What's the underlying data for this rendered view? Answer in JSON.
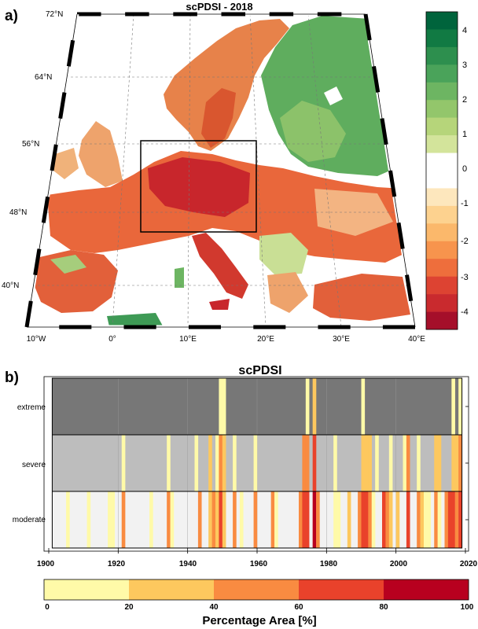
{
  "panel_a": {
    "label": "a)",
    "title": "scPDSI - 2018",
    "lat_labels": [
      "72°N",
      "64°N",
      "56°N",
      "48°N",
      "40°N"
    ],
    "lon_labels": [
      "10°W",
      "0°",
      "10°E",
      "20°E",
      "30°E",
      "40°E"
    ],
    "box_region": {
      "lon": [
        4,
        19
      ],
      "lat": [
        48,
        55.5
      ]
    },
    "colorbar": {
      "ticks": [
        "4",
        "3",
        "2",
        "1",
        "0",
        "-1",
        "-2",
        "-3",
        "-4"
      ],
      "colors": [
        "#00643c",
        "#117a43",
        "#2d8f4e",
        "#4aa35a",
        "#6db562",
        "#93c66b",
        "#b6d57a",
        "#d3e49b",
        "#ffffff",
        "#ffffff",
        "#fde7bd",
        "#fdd28f",
        "#fbb86b",
        "#f7944d",
        "#ee6e3c",
        "#dd4332",
        "#c92a2e",
        "#a50f2a"
      ]
    },
    "colors": {
      "wet": "#4aa35a",
      "dry": "#e0533a",
      "extreme_dry": "#b0142a",
      "ocean": "#ffffff"
    }
  },
  "panel_b": {
    "label": "b)",
    "title": "scPDSI",
    "xlabel": "Percentage Area [%]",
    "x_ticks": [
      "1900",
      "1920",
      "1940",
      "1960",
      "1980",
      "2000",
      "2020"
    ],
    "row_labels": [
      "extreme",
      "severe",
      "moderate"
    ],
    "row_backgrounds": [
      "#777777",
      "#bdbdbd",
      "#f2f2f2"
    ],
    "colorbar_ticks": [
      "0",
      "20",
      "40",
      "60",
      "80",
      "100"
    ],
    "colorbar_colors": [
      "#fffaa8",
      "#fdc85e",
      "#f98b41",
      "#e9422b",
      "#b8001f"
    ]
  },
  "chart_data": {
    "type": "heatmap",
    "title": "scPDSI",
    "xlabel": "Percentage Area [%]",
    "x_range": [
      1901,
      2018
    ],
    "rows": [
      "extreme",
      "severe",
      "moderate"
    ],
    "bins": [
      0,
      20,
      40,
      60,
      80,
      100
    ],
    "cells": {
      "extreme": [
        [
          1949,
          1
        ],
        [
          1950,
          1
        ],
        [
          1974,
          1
        ],
        [
          1976,
          2
        ],
        [
          1990,
          1
        ],
        [
          2016,
          1
        ],
        [
          2018,
          1
        ]
      ],
      "severe": [
        [
          1921,
          1
        ],
        [
          1934,
          1
        ],
        [
          1942,
          1
        ],
        [
          1946,
          2
        ],
        [
          1948,
          1
        ],
        [
          1949,
          3
        ],
        [
          1950,
          2
        ],
        [
          1953,
          1
        ],
        [
          1959,
          1
        ],
        [
          1973,
          3
        ],
        [
          1974,
          3
        ],
        [
          1976,
          4
        ],
        [
          1982,
          1
        ],
        [
          1990,
          2
        ],
        [
          1991,
          2
        ],
        [
          1992,
          2
        ],
        [
          1994,
          1
        ],
        [
          1998,
          1
        ],
        [
          2002,
          1
        ],
        [
          2003,
          3
        ],
        [
          2006,
          1
        ],
        [
          2011,
          2
        ],
        [
          2012,
          2
        ],
        [
          2016,
          2
        ],
        [
          2017,
          2
        ],
        [
          2018,
          3
        ]
      ],
      "moderate": [
        [
          1905,
          1
        ],
        [
          1911,
          1
        ],
        [
          1917,
          1
        ],
        [
          1918,
          1
        ],
        [
          1921,
          3
        ],
        [
          1929,
          1
        ],
        [
          1934,
          3
        ],
        [
          1935,
          1
        ],
        [
          1943,
          3
        ],
        [
          1946,
          2
        ],
        [
          1947,
          3
        ],
        [
          1948,
          2
        ],
        [
          1949,
          4
        ],
        [
          1950,
          2
        ],
        [
          1953,
          3
        ],
        [
          1955,
          1
        ],
        [
          1959,
          3
        ],
        [
          1964,
          3
        ],
        [
          1965,
          1
        ],
        [
          1972,
          3
        ],
        [
          1973,
          4
        ],
        [
          1974,
          4
        ],
        [
          1976,
          5
        ],
        [
          1977,
          3
        ],
        [
          1982,
          1
        ],
        [
          1983,
          1
        ],
        [
          1986,
          2
        ],
        [
          1989,
          3
        ],
        [
          1990,
          4
        ],
        [
          1991,
          4
        ],
        [
          1992,
          3
        ],
        [
          1993,
          1
        ],
        [
          1996,
          4
        ],
        [
          1997,
          3
        ],
        [
          1998,
          2
        ],
        [
          2000,
          2
        ],
        [
          2003,
          4
        ],
        [
          2006,
          3
        ],
        [
          2007,
          2
        ],
        [
          2008,
          1
        ],
        [
          2009,
          1
        ],
        [
          2011,
          3
        ],
        [
          2012,
          1
        ],
        [
          2014,
          3
        ],
        [
          2015,
          4
        ],
        [
          2016,
          4
        ],
        [
          2017,
          3
        ],
        [
          2018,
          4
        ]
      ]
    }
  }
}
